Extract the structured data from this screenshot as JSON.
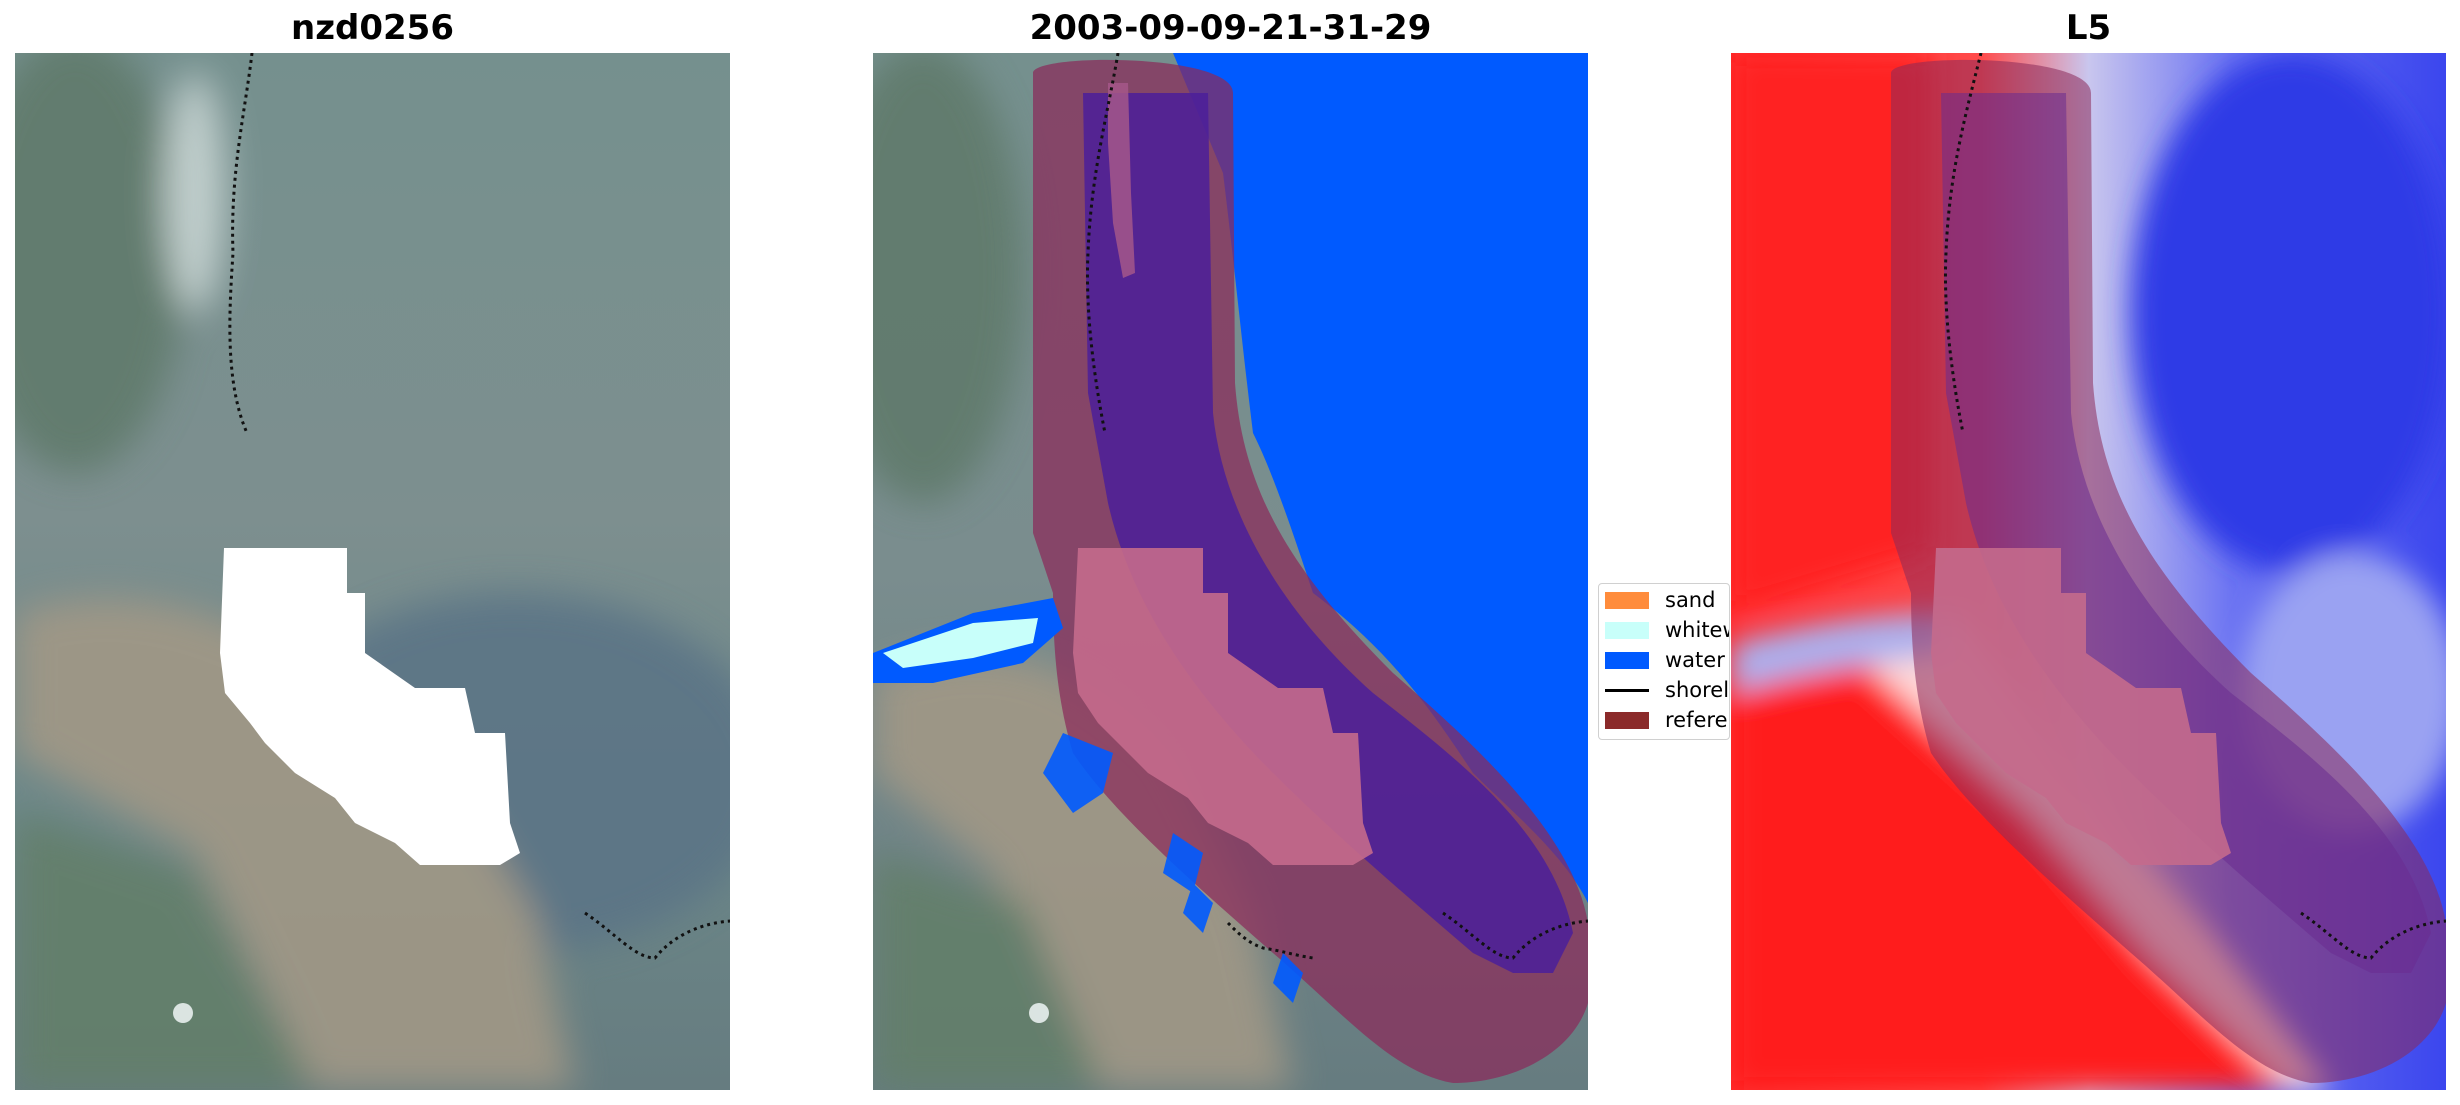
{
  "panels": [
    {
      "title": "nzd0256"
    },
    {
      "title": "2003-09-09-21-31-29"
    },
    {
      "title": "L5"
    }
  ],
  "legend": {
    "items": [
      {
        "label": "sand",
        "color": "#ff8c3c",
        "kind": "patch"
      },
      {
        "label": "whitewater",
        "color": "#c8fffa",
        "kind": "patch"
      },
      {
        "label": "water",
        "color": "#005aff",
        "kind": "patch"
      },
      {
        "label": "shoreline",
        "color": "#000000",
        "kind": "line"
      },
      {
        "label": "reference",
        "color": "#8b2a2a",
        "kind": "patch"
      }
    ]
  },
  "colors": {
    "imagery_base": "#6f8a88",
    "imagery_sand": "#a49a86",
    "water_class": "#005aff",
    "whitewater_class": "#c8fffa",
    "reference_buffer": "#8b2a5a",
    "index_positive": "#ff1a1a",
    "index_negative": "#3344ee",
    "mask_fill": "#ffffff"
  }
}
